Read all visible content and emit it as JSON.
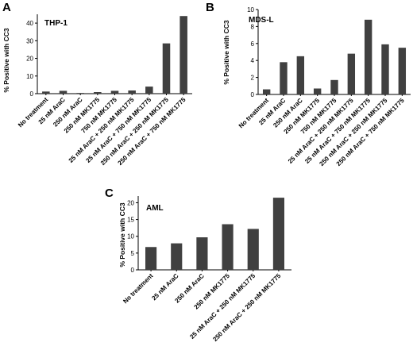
{
  "chart_data": [
    {
      "type": "bar",
      "panel": "A",
      "title": "THP-1",
      "ylabel": "% Positive with CC3",
      "ylim": [
        0,
        45
      ],
      "yticks": [
        0,
        10,
        20,
        30,
        40
      ],
      "grid": false,
      "categories": [
        "No treatment",
        "25 nM AraC",
        "250 nM AraC",
        "250 nM MK1775",
        "750 nM MK1775",
        "25 nM AraC + 250 nM MK1775",
        "25 nM AraC + 750 nM MK1775",
        "250 nM AraC + 250 nM MK1775",
        "250 nM AraC + 750 nM MK1775"
      ],
      "values": [
        1.2,
        1.6,
        0.4,
        0.9,
        1.6,
        1.8,
        4.0,
        28.5,
        44.0
      ],
      "bar_color": "#404040"
    },
    {
      "type": "bar",
      "panel": "B",
      "title": "MDS-L",
      "ylabel": "% Positive with CC3",
      "ylim": [
        0,
        10
      ],
      "yticks": [
        0,
        2,
        4,
        6,
        8,
        10
      ],
      "grid": false,
      "categories": [
        "No treatment",
        "25 nM AraC",
        "250 nM AraC",
        "250 nM MK1775",
        "750 nM MK1775",
        "25 nM AraC + 250 nM MK1775",
        "25 nM AraC + 750 nM MK1775",
        "250 nM AraC + 250 nM MK1775",
        "250 nM AraC + 750 nM MK1775"
      ],
      "values": [
        0.6,
        3.8,
        4.5,
        0.7,
        1.7,
        4.8,
        8.8,
        5.9,
        5.5
      ],
      "bar_color": "#404040"
    },
    {
      "type": "bar",
      "panel": "C",
      "title": "AML",
      "ylabel": "% Positive with CC3",
      "ylim": [
        0,
        22
      ],
      "yticks": [
        0,
        5,
        10,
        15,
        20
      ],
      "grid": false,
      "categories": [
        "No treatment",
        "25 nM AraC",
        "250 nM AraC",
        "250 nM MK1775",
        "25 nM AraC + 250 nM MK1775",
        "250 nM AraC + 250 nM MK1775"
      ],
      "values": [
        6.8,
        7.9,
        9.7,
        13.6,
        12.2,
        21.5
      ],
      "bar_color": "#404040"
    }
  ]
}
